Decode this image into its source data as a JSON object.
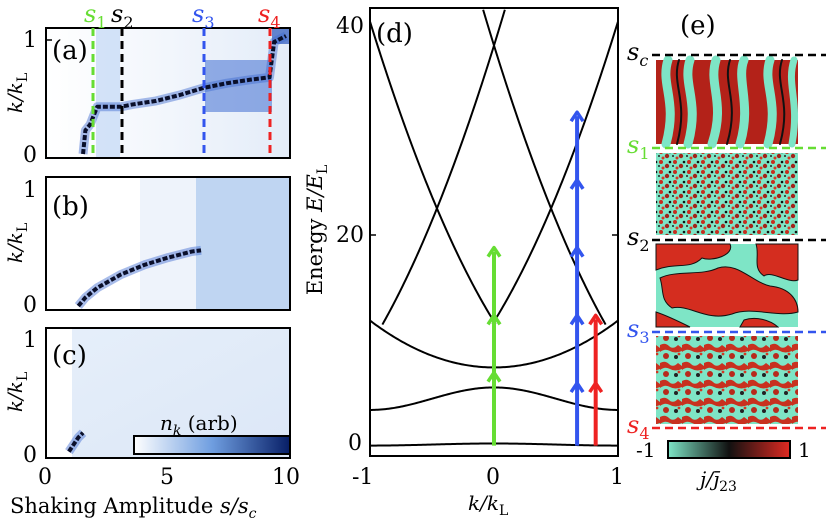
{
  "chart_data": [
    {
      "type": "heatmap",
      "panel": "(a)",
      "ylabel": "k/k_L",
      "ylim": [
        0,
        1
      ],
      "xlim": [
        0,
        10
      ],
      "yticks": [
        "0",
        "1"
      ],
      "markers": [
        {
          "label": "s1",
          "x": 2.0,
          "color": "#66dd33"
        },
        {
          "label": "s2",
          "x": 3.2,
          "color": "#000000"
        },
        {
          "label": "s3",
          "x": 6.6,
          "color": "#3355ee"
        },
        {
          "label": "s4",
          "x": 9.3,
          "color": "#ee2222"
        }
      ],
      "ridge": [
        [
          1.4,
          0.0
        ],
        [
          1.5,
          0.2
        ],
        [
          1.7,
          0.25
        ],
        [
          1.8,
          0.3
        ],
        [
          2.0,
          0.4
        ],
        [
          3.0,
          0.4
        ],
        [
          3.5,
          0.42
        ],
        [
          4.5,
          0.45
        ],
        [
          5.5,
          0.5
        ],
        [
          6.5,
          0.56
        ],
        [
          7.5,
          0.6
        ],
        [
          8.5,
          0.63
        ],
        [
          9.3,
          0.65
        ],
        [
          9.5,
          0.95
        ],
        [
          10,
          1.0
        ]
      ]
    },
    {
      "type": "heatmap",
      "panel": "(b)",
      "ylabel": "k/k_L",
      "ylim": [
        0,
        1
      ],
      "xlim": [
        0,
        10
      ],
      "yticks": [
        "0",
        "1"
      ],
      "ridge": [
        [
          1.2,
          0.0
        ],
        [
          1.5,
          0.07
        ],
        [
          2.0,
          0.15
        ],
        [
          3.0,
          0.26
        ],
        [
          4.0,
          0.34
        ],
        [
          5.0,
          0.4
        ],
        [
          6.0,
          0.45
        ],
        [
          6.4,
          0.46
        ]
      ]
    },
    {
      "type": "heatmap",
      "panel": "(c)",
      "ylabel": "k/k_L",
      "ylim": [
        0,
        1
      ],
      "xlim": [
        0,
        10
      ],
      "yticks": [
        "0",
        "1"
      ],
      "xticks": [
        "0",
        "5",
        "10"
      ],
      "xlabel": "Shaking Amplitude s/s_c",
      "colorbar_label": "n_k (arb)",
      "ridge": [
        [
          0.8,
          0.02
        ],
        [
          1.0,
          0.08
        ],
        [
          1.2,
          0.14
        ],
        [
          1.4,
          0.18
        ]
      ]
    },
    {
      "type": "line",
      "panel": "(d)",
      "title": "",
      "xlabel": "k/k_L",
      "ylabel": "Energy E/E_L",
      "xlim": [
        -1,
        1
      ],
      "ylim": [
        -1,
        42
      ],
      "xticks": [
        "-1",
        "0",
        "1"
      ],
      "yticks": [
        "0",
        "20",
        "40"
      ],
      "arrows": [
        {
          "x": 0.0,
          "from": 0.0,
          "to": 19.0,
          "color": "#66dd33",
          "heads": [
            7.0,
            12.5,
            19.0
          ]
        },
        {
          "x": 0.67,
          "from": 0.0,
          "to": 32.0,
          "color": "#3355ee",
          "heads": [
            6.0,
            12.5,
            19.0,
            25.5,
            32.0
          ]
        },
        {
          "x": 0.82,
          "from": 0.0,
          "to": 12.5,
          "color": "#ee2222",
          "heads": [
            6.0,
            12.5
          ]
        }
      ]
    },
    {
      "type": "image",
      "panel": "(e)",
      "row_labels": [
        "s_c",
        "s_1",
        "s_2",
        "s_3",
        "s_4"
      ],
      "row_label_colors": [
        "#000000",
        "#66dd33",
        "#000000",
        "#3355ee",
        "#ee2222"
      ],
      "colorbar_label": "j/j̄_23",
      "colorbar_ticks": [
        "-1",
        "1"
      ]
    }
  ],
  "labels": {
    "panel_a": "(a)",
    "panel_b": "(b)",
    "panel_c": "(c)",
    "panel_d": "(d)",
    "panel_e": "(e)",
    "s_letter": "s",
    "sub1": "1",
    "sub2": "2",
    "sub3": "3",
    "sub4": "4",
    "subc": "c",
    "ylabel_k": "k/k",
    "ylabel_k_sub": "L",
    "xlabel_main": "Shaking Amplitude ",
    "xlabel_var": "s/s",
    "xlabel_var_sub": "c",
    "d_ylabel_main": "Energy ",
    "d_ylabel_var": "E/E",
    "d_ylabel_sub": "L",
    "d_xlabel": "k/k",
    "d_xlabel_sub": "L",
    "nk_label": "n",
    "nk_sub": "k",
    "nk_unit": " (arb)",
    "cb_e_minus": "-1",
    "cb_e_plus": "1",
    "cb_e_label": "j/j̄",
    "cb_e_sub": "23",
    "tick_0": "0",
    "tick_1": "1",
    "tick_5": "5",
    "tick_10": "10",
    "tick_20": "20",
    "tick_40": "40",
    "tick_m1": "-1"
  },
  "colors": {
    "green": "#66dd33",
    "black": "#000000",
    "blue": "#3355ee",
    "red": "#ee2222",
    "cyan": "#7ee5c6",
    "dark_red": "#b32219"
  }
}
